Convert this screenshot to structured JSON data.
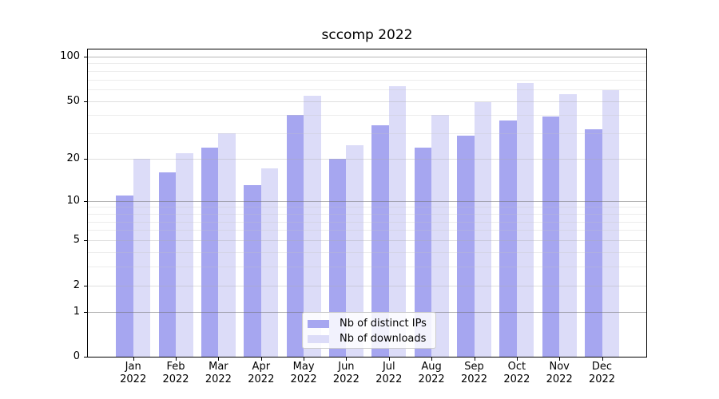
{
  "chart_data": {
    "type": "bar",
    "title": "sccomp 2022",
    "categories": [
      "Jan",
      "Feb",
      "Mar",
      "Apr",
      "May",
      "Jun",
      "Jul",
      "Aug",
      "Sep",
      "Oct",
      "Nov",
      "Dec"
    ],
    "category_year": "2022",
    "series": [
      {
        "name": "Nb of distinct IPs",
        "color": "#a6a6f0",
        "values": [
          11,
          16,
          24,
          13,
          40,
          20,
          34,
          24,
          29,
          37,
          39,
          32
        ]
      },
      {
        "name": "Nb of downloads",
        "color": "#dcdcf8",
        "values": [
          20,
          22,
          30,
          17,
          54,
          25,
          63,
          40,
          49,
          66,
          56,
          59
        ]
      }
    ],
    "yscale": "log1p",
    "ylim": [
      0,
      110
    ],
    "yticks": [
      0,
      1,
      2,
      5,
      10,
      20,
      50,
      100
    ],
    "grid": true,
    "legend_position": "lower center"
  }
}
